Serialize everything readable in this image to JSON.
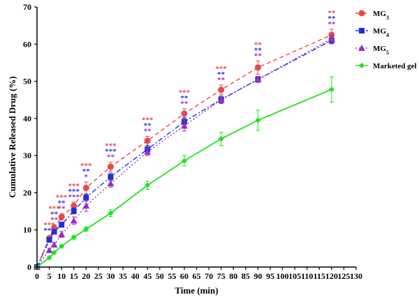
{
  "chart_data": {
    "type": "line",
    "xlabel": "Time (min)",
    "ylabel": "Cumulative Released Drug (%)",
    "xlim": [
      0,
      130
    ],
    "ylim": [
      0,
      70
    ],
    "x_ticks": [
      0,
      5,
      10,
      15,
      20,
      25,
      30,
      35,
      40,
      45,
      50,
      55,
      60,
      65,
      70,
      75,
      80,
      85,
      90,
      95,
      100,
      105,
      110,
      115,
      120,
      125,
      130
    ],
    "y_ticks": [
      0,
      10,
      20,
      30,
      40,
      50,
      60,
      70
    ],
    "grid": false,
    "legend_position": "top-right",
    "x": [
      0,
      5,
      7,
      10,
      15,
      20,
      30,
      45,
      60,
      75,
      90,
      120
    ],
    "series": [
      {
        "name": "MG",
        "subscript": "3",
        "color": "#e8484b",
        "marker": "circle",
        "dash": "dashed",
        "values": [
          0,
          7.8,
          10.6,
          13.5,
          16.5,
          21.3,
          27.0,
          34.0,
          41.3,
          47.7,
          53.7,
          62.5
        ],
        "errors": [
          0,
          0.6,
          0.8,
          0.9,
          1.0,
          1.6,
          1.2,
          1.2,
          1.3,
          1.3,
          1.8,
          1.5
        ]
      },
      {
        "name": "MG",
        "subscript": "4",
        "color": "#1f2fd6",
        "marker": "square",
        "dash": "dashdot",
        "values": [
          0,
          7.3,
          9.5,
          11.4,
          15.1,
          18.7,
          24.3,
          31.7,
          39.1,
          45.1,
          50.5,
          61.0
        ],
        "errors": [
          0,
          0.5,
          0.6,
          0.7,
          0.8,
          0.9,
          1.0,
          1.0,
          1.1,
          0.9,
          0.8,
          0.9
        ]
      },
      {
        "name": "MG",
        "subscript": "5",
        "color": "#9b2fc0",
        "marker": "triangle",
        "dash": "dotted",
        "values": [
          0,
          4.5,
          6.0,
          8.8,
          12.5,
          16.5,
          22.5,
          31.0,
          38.0,
          45.0,
          50.5,
          61.5
        ],
        "errors": [
          0,
          0.5,
          0.6,
          0.8,
          1.0,
          1.5,
          1.0,
          1.0,
          1.4,
          1.0,
          0.8,
          0.9
        ]
      },
      {
        "name": "Marketed gel",
        "subscript": "",
        "color": "#22e022",
        "marker": "diamond",
        "dash": "solid",
        "values": [
          0,
          2.5,
          3.9,
          5.6,
          8.0,
          10.2,
          14.5,
          22.0,
          28.6,
          34.5,
          39.5,
          47.8
        ],
        "errors": [
          0,
          0.3,
          0.3,
          0.4,
          0.5,
          0.6,
          0.9,
          1.1,
          1.4,
          1.8,
          2.7,
          3.4
        ]
      }
    ],
    "annotations": [
      {
        "x": 5,
        "marks": [
          {
            "text": "***",
            "color": "#e8484b"
          },
          {
            "text": "***",
            "color": "#1f2fd6"
          }
        ]
      },
      {
        "x": 7,
        "marks": [
          {
            "text": "***",
            "color": "#e8484b"
          },
          {
            "text": "**",
            "color": "#1f2fd6"
          },
          {
            "text": "**",
            "color": "#9b2fc0"
          }
        ]
      },
      {
        "x": 10,
        "marks": [
          {
            "text": "***",
            "color": "#e8484b"
          },
          {
            "text": "**",
            "color": "#1f2fd6"
          },
          {
            "text": "**",
            "color": "#9b2fc0"
          }
        ]
      },
      {
        "x": 15,
        "marks": [
          {
            "text": "***",
            "color": "#e8484b"
          },
          {
            "text": "***",
            "color": "#1f2fd6"
          },
          {
            "text": "***",
            "color": "#9b2fc0"
          }
        ]
      },
      {
        "x": 20,
        "marks": [
          {
            "text": "***",
            "color": "#e8484b"
          },
          {
            "text": "**",
            "color": "#1f2fd6"
          },
          {
            "text": "*",
            "color": "#9b2fc0"
          }
        ]
      },
      {
        "x": 30,
        "marks": [
          {
            "text": "***",
            "color": "#e8484b"
          },
          {
            "text": "***",
            "color": "#1f2fd6"
          },
          {
            "text": "**",
            "color": "#9b2fc0"
          }
        ]
      },
      {
        "x": 45,
        "marks": [
          {
            "text": "***",
            "color": "#e8484b"
          },
          {
            "text": "**",
            "color": "#1f2fd6"
          },
          {
            "text": "**",
            "color": "#9b2fc0"
          }
        ]
      },
      {
        "x": 60,
        "marks": [
          {
            "text": "***",
            "color": "#e8484b"
          },
          {
            "text": "**",
            "color": "#1f2fd6"
          },
          {
            "text": "**",
            "color": "#9b2fc0"
          }
        ]
      },
      {
        "x": 75,
        "marks": [
          {
            "text": "***",
            "color": "#e8484b"
          },
          {
            "text": "**",
            "color": "#1f2fd6"
          },
          {
            "text": "**",
            "color": "#9b2fc0"
          }
        ]
      },
      {
        "x": 90,
        "marks": [
          {
            "text": "**",
            "color": "#e8484b"
          },
          {
            "text": "**",
            "color": "#1f2fd6"
          },
          {
            "text": "**",
            "color": "#9b2fc0"
          }
        ]
      },
      {
        "x": 120,
        "marks": [
          {
            "text": "**",
            "color": "#e8484b"
          },
          {
            "text": "**",
            "color": "#1f2fd6"
          },
          {
            "text": "**",
            "color": "#9b2fc0"
          }
        ]
      }
    ]
  }
}
